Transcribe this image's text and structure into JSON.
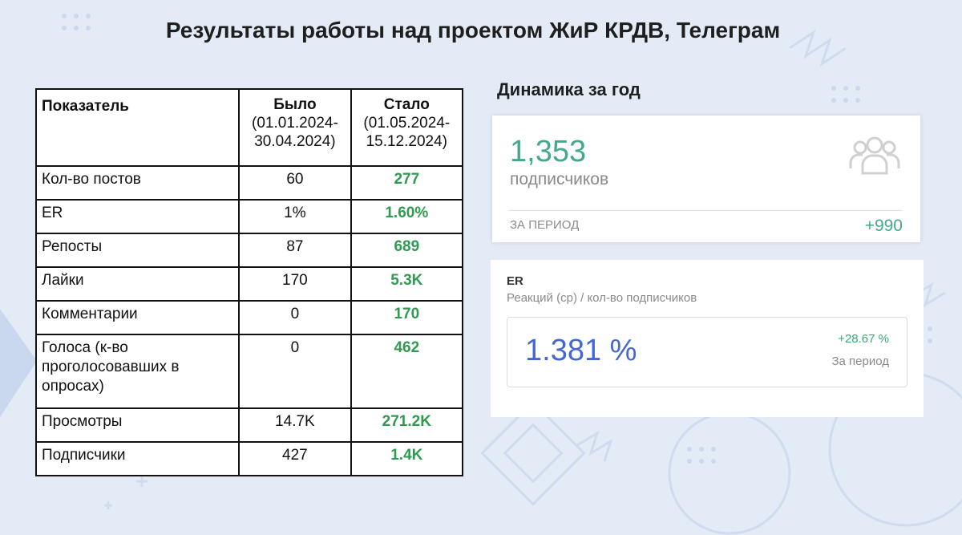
{
  "title": "Результаты работы над проектом ЖиР КРДВ,  Телеграм",
  "table": {
    "headers": {
      "metric": "Показатель",
      "before": "Было",
      "before_period": "(01.01.2024-30.04.2024)",
      "after": "Стало",
      "after_period": "(01.05.2024-15.12.2024)"
    },
    "rows": [
      {
        "label": "Кол-во постов",
        "before": "60",
        "after": "277"
      },
      {
        "label": "ER",
        "before": "1%",
        "after": "1.60%"
      },
      {
        "label": "Репосты",
        "before": "87",
        "after": "689"
      },
      {
        "label": "Лайки",
        "before": "170",
        "after": "5.3K"
      },
      {
        "label": "Комментарии",
        "before": "0",
        "after": "170"
      },
      {
        "label": "Голоса (к-во проголосовавших в опросах)",
        "before": "0",
        "after": "462"
      },
      {
        "label": "Просмотры",
        "before": "14.7K",
        "after": "271.2K"
      },
      {
        "label": "Подписчики",
        "before": "427",
        "after": "1.4K"
      }
    ]
  },
  "dynamics": {
    "title": "Динамика за год",
    "subscribers": {
      "value": "1,353",
      "label": "подписчиков",
      "period_label": "ЗА ПЕРИОД",
      "period_value": "+990",
      "icon": "users-icon"
    },
    "er": {
      "title": "ER",
      "subtitle": "Реакций (ср) / кол-во подписчиков",
      "value": "1.381 %",
      "delta": "+28.67 %",
      "period_label": "За период"
    }
  },
  "colors": {
    "background": "#e3ebf6",
    "growth_green": "#2e9b50",
    "teal": "#43a98c",
    "er_blue": "#4468d2"
  }
}
